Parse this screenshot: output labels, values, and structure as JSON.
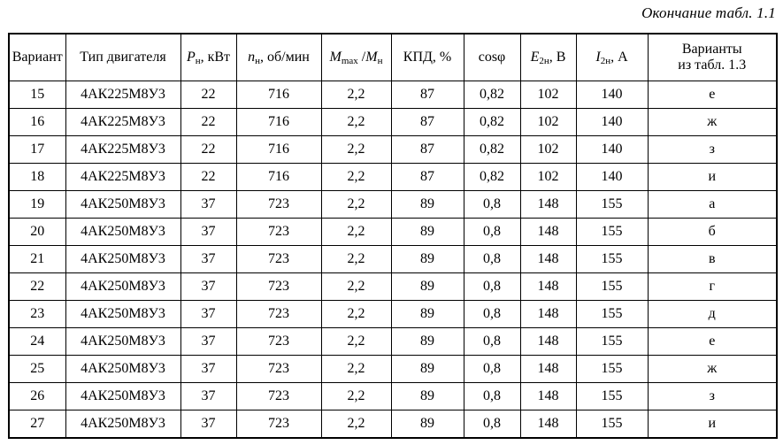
{
  "page": {
    "caption": "Окончание табл. 1.1"
  },
  "table": {
    "headers": {
      "variant": "Вариант",
      "motor_type": "Тип двигателя",
      "p": {
        "var": "P",
        "sub": "н",
        "rest": ", кВт"
      },
      "n": {
        "var": "n",
        "sub": "н",
        "rest": ", об/мин"
      },
      "m": {
        "var1": "M",
        "sub1": "max",
        "mid": " /",
        "var2": "M",
        "sub2": "н"
      },
      "kpd": "КПД, %",
      "cos": "cosφ",
      "e": {
        "var": "E",
        "sub": "2н",
        "rest": ", В"
      },
      "i": {
        "var": "I",
        "sub": "2н",
        "rest": ", А"
      },
      "variants_line1": "Варианты",
      "variants_line2": "из табл. 1.3"
    },
    "rows": [
      [
        "15",
        "4АК225М8У3",
        "22",
        "716",
        "2,2",
        "87",
        "0,82",
        "102",
        "140",
        "е"
      ],
      [
        "16",
        "4АК225М8У3",
        "22",
        "716",
        "2,2",
        "87",
        "0,82",
        "102",
        "140",
        "ж"
      ],
      [
        "17",
        "4АК225М8У3",
        "22",
        "716",
        "2,2",
        "87",
        "0,82",
        "102",
        "140",
        "з"
      ],
      [
        "18",
        "4АК225М8У3",
        "22",
        "716",
        "2,2",
        "87",
        "0,82",
        "102",
        "140",
        "и"
      ],
      [
        "19",
        "4АК250М8У3",
        "37",
        "723",
        "2,2",
        "89",
        "0,8",
        "148",
        "155",
        "а"
      ],
      [
        "20",
        "4АК250М8У3",
        "37",
        "723",
        "2,2",
        "89",
        "0,8",
        "148",
        "155",
        "б"
      ],
      [
        "21",
        "4АК250М8У3",
        "37",
        "723",
        "2,2",
        "89",
        "0,8",
        "148",
        "155",
        "в"
      ],
      [
        "22",
        "4АК250М8У3",
        "37",
        "723",
        "2,2",
        "89",
        "0,8",
        "148",
        "155",
        "г"
      ],
      [
        "23",
        "4АК250М8У3",
        "37",
        "723",
        "2,2",
        "89",
        "0,8",
        "148",
        "155",
        "д"
      ],
      [
        "24",
        "4АК250М8У3",
        "37",
        "723",
        "2,2",
        "89",
        "0,8",
        "148",
        "155",
        "е"
      ],
      [
        "25",
        "4АК250М8У3",
        "37",
        "723",
        "2,2",
        "89",
        "0,8",
        "148",
        "155",
        "ж"
      ],
      [
        "26",
        "4АК250М8У3",
        "37",
        "723",
        "2,2",
        "89",
        "0,8",
        "148",
        "155",
        "з"
      ],
      [
        "27",
        "4АК250М8У3",
        "37",
        "723",
        "2,2",
        "89",
        "0,8",
        "148",
        "155",
        "и"
      ]
    ],
    "colors": {
      "border": "#000000",
      "text": "#000000",
      "background": "#ffffff"
    }
  }
}
